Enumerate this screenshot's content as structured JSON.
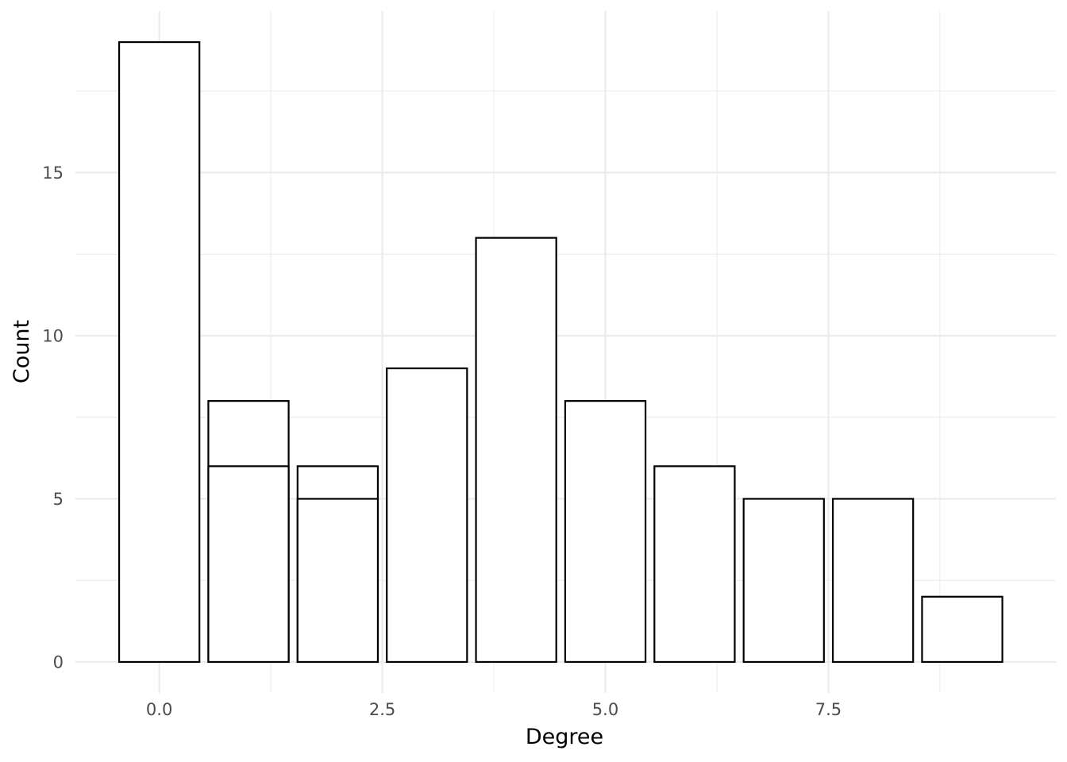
{
  "chart_data": {
    "type": "bar",
    "title": "",
    "xlabel": "Degree",
    "ylabel": "Count",
    "x_ticks": [
      "0.0",
      "2.5",
      "5.0",
      "7.5"
    ],
    "y_ticks": [
      "0",
      "5",
      "10",
      "15"
    ],
    "xlim": [
      -0.94,
      10.05
    ],
    "ylim": [
      -0.95,
      19.95
    ],
    "grid": true,
    "legend": "none",
    "bars": [
      {
        "x": 0,
        "value": 19
      },
      {
        "x": 1,
        "value": 8
      },
      {
        "x": 1,
        "value": 6
      },
      {
        "x": 2,
        "value": 6
      },
      {
        "x": 2,
        "value": 5
      },
      {
        "x": 3,
        "value": 9
      },
      {
        "x": 4,
        "value": 13
      },
      {
        "x": 5,
        "value": 8
      },
      {
        "x": 6,
        "value": 6
      },
      {
        "x": 7,
        "value": 5
      },
      {
        "x": 8,
        "value": 5
      },
      {
        "x": 9,
        "value": 2
      }
    ]
  }
}
